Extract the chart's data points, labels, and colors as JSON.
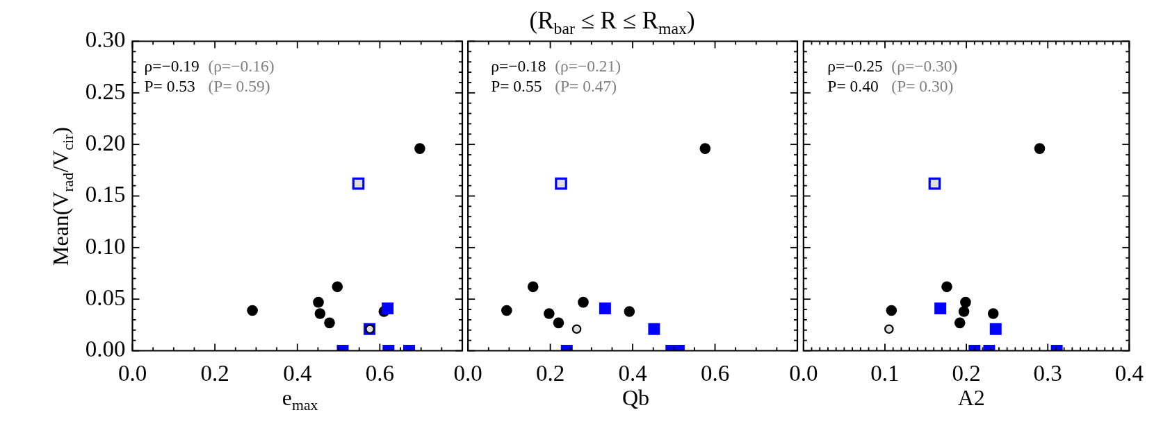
{
  "chart_data": [
    {
      "type": "scatter",
      "xlabel": "e$_{max}$",
      "ylabel": "Mean(V$_{rad}$/V$_{cir}$)",
      "xlim": [
        0,
        0.8
      ],
      "ylim": [
        0,
        0.3
      ],
      "xticks": [
        {
          "value": 0,
          "label": "0.0"
        },
        {
          "value": 0.05,
          "label": null
        },
        {
          "value": 0.1,
          "label": null
        },
        {
          "value": 0.15,
          "label": null
        },
        0.2,
        {
          "value": 0.25,
          "label": null
        },
        {
          "value": 0.3,
          "label": null
        },
        {
          "value": 0.35,
          "label": null
        },
        0.4,
        {
          "value": 0.45,
          "label": null
        },
        {
          "value": 0.5,
          "label": null
        },
        {
          "value": 0.55,
          "label": null
        },
        0.6,
        {
          "value": 0.65,
          "label": null
        },
        {
          "value": 0.7,
          "label": null
        },
        {
          "value": 0.75,
          "label": null
        },
        {
          "value": 0.8,
          "label": null
        }
      ],
      "yticks": [
        {
          "value": 0,
          "label": "0.00"
        },
        {
          "value": 0.01,
          "label": null
        },
        {
          "value": 0.02,
          "label": null
        },
        {
          "value": 0.03,
          "label": null
        },
        {
          "value": 0.04,
          "label": null
        },
        0.05,
        {
          "value": 0.06,
          "label": null
        },
        {
          "value": 0.07,
          "label": null
        },
        {
          "value": 0.08,
          "label": null
        },
        {
          "value": 0.09,
          "label": null
        },
        {
          "value": 0.1,
          "label": "0.10"
        },
        {
          "value": 0.11,
          "label": null
        },
        {
          "value": 0.12,
          "label": null
        },
        {
          "value": 0.13,
          "label": null
        },
        {
          "value": 0.14,
          "label": null
        },
        0.15,
        {
          "value": 0.16,
          "label": null
        },
        {
          "value": 0.17,
          "label": null
        },
        {
          "value": 0.18,
          "label": null
        },
        {
          "value": 0.19,
          "label": null
        },
        {
          "value": 0.2,
          "label": "0.20"
        },
        {
          "value": 0.21,
          "label": null
        },
        {
          "value": 0.22,
          "label": null
        },
        {
          "value": 0.23,
          "label": null
        },
        {
          "value": 0.24,
          "label": null
        },
        0.25,
        {
          "value": 0.26,
          "label": null
        },
        {
          "value": 0.27,
          "label": null
        },
        {
          "value": 0.28,
          "label": null
        },
        {
          "value": 0.29,
          "label": null
        },
        {
          "value": 0.3,
          "label": "0.30"
        }
      ],
      "annotations": [
        "ρ=−0.19",
        "(ρ=−0.16)",
        "P= 0.53",
        "(P= 0.59)"
      ],
      "series": [
        {
          "color": "#000000",
          "marker": "circle",
          "x": [
            0.291,
            0.451,
            0.455,
            0.478,
            0.497,
            0.61,
            0.697
          ],
          "values": [
            0.039,
            0.047,
            0.036,
            0.027,
            0.062,
            0.038,
            0.196
          ]
        },
        {
          "color": "#0000ff",
          "marker": "square",
          "x": [
            0.619,
            0.575,
            0.51,
            0.621,
            0.671
          ],
          "values": [
            0.041,
            0.021,
            0,
            0,
            0
          ]
        },
        {
          "color": "#0000ff",
          "colors": [
            "#e0e0e0"
          ],
          "marker": "square",
          "x": [
            0.548
          ],
          "values": [
            0.162
          ]
        },
        {
          "color": "#000000",
          "colors": [
            "#e0e0e0"
          ],
          "marker": "circle",
          "x": [
            0.576
          ],
          "values": [
            0.021
          ]
        }
      ]
    },
    {
      "type": "scatter",
      "title": "(R$_{bar}$ ≤ R ≤ R$_{max}$)",
      "xlabel": "Qb",
      "xlim": [
        0,
        0.8
      ],
      "ylim": [
        0,
        0.3
      ],
      "tick_labels": "x",
      "xticks": [
        {
          "value": 0,
          "label": "0.0"
        },
        {
          "value": 0.05,
          "label": null
        },
        {
          "value": 0.1,
          "label": null
        },
        {
          "value": 0.15,
          "label": null
        },
        0.2,
        {
          "value": 0.25,
          "label": null
        },
        {
          "value": 0.3,
          "label": null
        },
        {
          "value": 0.35,
          "label": null
        },
        0.4,
        {
          "value": 0.45,
          "label": null
        },
        {
          "value": 0.5,
          "label": null
        },
        {
          "value": 0.55,
          "label": null
        },
        0.6,
        {
          "value": 0.65,
          "label": null
        },
        {
          "value": 0.7,
          "label": null
        },
        {
          "value": 0.75,
          "label": null
        },
        {
          "value": 0.8,
          "label": null
        }
      ],
      "yticks": [
        0,
        {
          "value": 0.01,
          "label": null
        },
        {
          "value": 0.02,
          "label": null
        },
        {
          "value": 0.03,
          "label": null
        },
        {
          "value": 0.04,
          "label": null
        },
        0.05,
        {
          "value": 0.06,
          "label": null
        },
        {
          "value": 0.07,
          "label": null
        },
        {
          "value": 0.08,
          "label": null
        },
        {
          "value": 0.09,
          "label": null
        },
        0.1,
        {
          "value": 0.11,
          "label": null
        },
        {
          "value": 0.12,
          "label": null
        },
        {
          "value": 0.13,
          "label": null
        },
        {
          "value": 0.14,
          "label": null
        },
        0.15,
        {
          "value": 0.16,
          "label": null
        },
        {
          "value": 0.17,
          "label": null
        },
        {
          "value": 0.18,
          "label": null
        },
        {
          "value": 0.19,
          "label": null
        },
        0.2,
        {
          "value": 0.21,
          "label": null
        },
        {
          "value": 0.22,
          "label": null
        },
        {
          "value": 0.23,
          "label": null
        },
        {
          "value": 0.24,
          "label": null
        },
        0.25,
        {
          "value": 0.26,
          "label": null
        },
        {
          "value": 0.27,
          "label": null
        },
        {
          "value": 0.28,
          "label": null
        },
        {
          "value": 0.29,
          "label": null
        },
        0.3
      ],
      "annotations": [
        "ρ=−0.18",
        "(ρ=−0.21)",
        "P= 0.55",
        "(P= 0.47)"
      ],
      "series": [
        {
          "color": "#000000",
          "marker": "circle",
          "x": [
            0.094,
            0.158,
            0.197,
            0.22,
            0.28,
            0.392,
            0.576
          ],
          "values": [
            0.039,
            0.062,
            0.036,
            0.027,
            0.047,
            0.038,
            0.196
          ]
        },
        {
          "color": "#0000ff",
          "marker": "square",
          "x": [
            0.333,
            0.452,
            0.24,
            0.494,
            0.512
          ],
          "values": [
            0.041,
            0.021,
            0,
            0,
            0
          ]
        },
        {
          "color": "#0000ff",
          "colors": [
            "#e0e0e0"
          ],
          "marker": "square",
          "x": [
            0.226
          ],
          "values": [
            0.162
          ]
        },
        {
          "color": "#000000",
          "colors": [
            "#e0e0e0"
          ],
          "marker": "circle",
          "x": [
            0.264
          ],
          "values": [
            0.021
          ]
        }
      ]
    },
    {
      "type": "scatter",
      "xlabel": "A2",
      "xlim": [
        0,
        0.4
      ],
      "ylim": [
        0,
        0.3
      ],
      "tick_labels": "x",
      "xticks": [
        {
          "value": 0,
          "label": "0.0"
        },
        {
          "value": 0.01,
          "label": null
        },
        {
          "value": 0.02,
          "label": null
        },
        {
          "value": 0.03,
          "label": null
        },
        {
          "value": 0.04,
          "label": null
        },
        {
          "value": 0.05,
          "label": null
        },
        {
          "value": 0.06,
          "label": null
        },
        {
          "value": 0.07,
          "label": null
        },
        {
          "value": 0.08,
          "label": null
        },
        {
          "value": 0.09,
          "label": null
        },
        0.1,
        {
          "value": 0.11,
          "label": null
        },
        {
          "value": 0.12,
          "label": null
        },
        {
          "value": 0.13,
          "label": null
        },
        {
          "value": 0.14,
          "label": null
        },
        {
          "value": 0.15,
          "label": null
        },
        {
          "value": 0.16,
          "label": null
        },
        {
          "value": 0.17,
          "label": null
        },
        {
          "value": 0.18,
          "label": null
        },
        {
          "value": 0.19,
          "label": null
        },
        0.2,
        {
          "value": 0.21,
          "label": null
        },
        {
          "value": 0.22,
          "label": null
        },
        {
          "value": 0.23,
          "label": null
        },
        {
          "value": 0.24,
          "label": null
        },
        {
          "value": 0.25,
          "label": null
        },
        {
          "value": 0.26,
          "label": null
        },
        {
          "value": 0.27,
          "label": null
        },
        {
          "value": 0.28,
          "label": null
        },
        {
          "value": 0.29,
          "label": null
        },
        0.3,
        {
          "value": 0.31,
          "label": null
        },
        {
          "value": 0.32,
          "label": null
        },
        {
          "value": 0.33,
          "label": null
        },
        {
          "value": 0.34,
          "label": null
        },
        {
          "value": 0.35,
          "label": null
        },
        {
          "value": 0.36,
          "label": null
        },
        {
          "value": 0.37,
          "label": null
        },
        {
          "value": 0.38,
          "label": null
        },
        {
          "value": 0.39,
          "label": null
        },
        0.4
      ],
      "yticks": [
        0,
        {
          "value": 0.01,
          "label": null
        },
        {
          "value": 0.02,
          "label": null
        },
        {
          "value": 0.03,
          "label": null
        },
        {
          "value": 0.04,
          "label": null
        },
        0.05,
        {
          "value": 0.06,
          "label": null
        },
        {
          "value": 0.07,
          "label": null
        },
        {
          "value": 0.08,
          "label": null
        },
        {
          "value": 0.09,
          "label": null
        },
        0.1,
        {
          "value": 0.11,
          "label": null
        },
        {
          "value": 0.12,
          "label": null
        },
        {
          "value": 0.13,
          "label": null
        },
        {
          "value": 0.14,
          "label": null
        },
        0.15,
        {
          "value": 0.16,
          "label": null
        },
        {
          "value": 0.17,
          "label": null
        },
        {
          "value": 0.18,
          "label": null
        },
        {
          "value": 0.19,
          "label": null
        },
        0.2,
        {
          "value": 0.21,
          "label": null
        },
        {
          "value": 0.22,
          "label": null
        },
        {
          "value": 0.23,
          "label": null
        },
        {
          "value": 0.24,
          "label": null
        },
        0.25,
        {
          "value": 0.26,
          "label": null
        },
        {
          "value": 0.27,
          "label": null
        },
        {
          "value": 0.28,
          "label": null
        },
        {
          "value": 0.29,
          "label": null
        },
        0.3
      ],
      "annotations": [
        "ρ=−0.25",
        "(ρ=−0.30)",
        "P= 0.40",
        "(P= 0.30)"
      ],
      "series": [
        {
          "color": "#000000",
          "marker": "circle",
          "x": [
            0.108,
            0.176,
            0.199,
            0.197,
            0.192,
            0.233,
            0.29
          ],
          "values": [
            0.039,
            0.062,
            0.047,
            0.038,
            0.027,
            0.036,
            0.196
          ]
        },
        {
          "color": "#0000ff",
          "marker": "square",
          "x": [
            0.168,
            0.236,
            0.21,
            0.228,
            0.311
          ],
          "values": [
            0.041,
            0.021,
            0,
            0,
            0
          ]
        },
        {
          "color": "#0000ff",
          "colors": [
            "#e0e0e0"
          ],
          "marker": "square",
          "x": [
            0.161
          ],
          "values": [
            0.162
          ]
        },
        {
          "color": "#000000",
          "colors": [
            "#e0e0e0"
          ],
          "marker": "circle",
          "x": [
            0.105
          ],
          "values": [
            0.021
          ]
        }
      ]
    }
  ]
}
